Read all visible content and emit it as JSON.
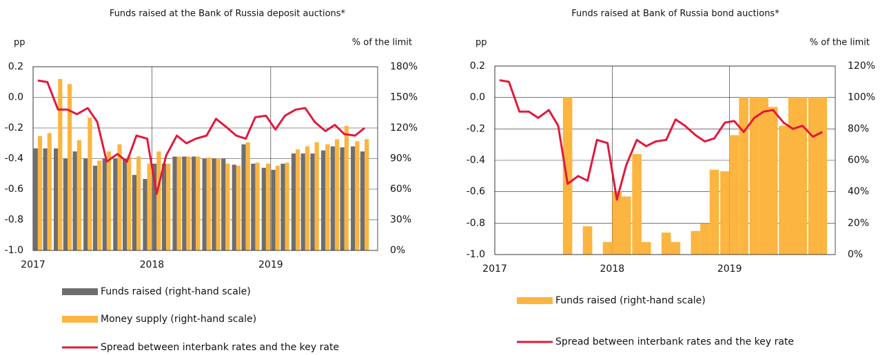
{
  "chart_data": [
    {
      "type": "combo",
      "title": "Funds raised at the Bank of Russia deposit auctions*",
      "y_label": "pp",
      "y2_label": "% of the limit",
      "x": [
        2017,
        2017.08,
        2017.17,
        2017.25,
        2017.33,
        2017.42,
        2017.5,
        2017.58,
        2017.67,
        2017.75,
        2017.83,
        2017.92,
        2018,
        2018.08,
        2018.17,
        2018.25,
        2018.33,
        2018.42,
        2018.5,
        2018.58,
        2018.67,
        2018.75,
        2018.83,
        2018.92,
        2019,
        2019.08,
        2019.17,
        2019.25,
        2019.33,
        2019.42,
        2019.5,
        2019.58,
        2019.67,
        2019.75
      ],
      "series": [
        {
          "name": "Funds raised (right-hand scale)",
          "kind": "bar",
          "axis": "y2",
          "color": "#6e6e6e",
          "values": [
            100,
            100,
            100,
            90,
            97,
            90,
            83,
            90,
            90,
            90,
            74,
            70,
            85,
            85,
            92,
            92,
            92,
            90,
            90,
            90,
            84,
            104,
            85,
            81,
            79,
            85,
            95,
            95,
            95,
            98,
            102,
            101,
            102,
            97
          ]
        },
        {
          "name": "Money supply (right-hand scale)",
          "kind": "bar",
          "axis": "y2",
          "color": "#fbb540",
          "values": [
            112,
            115,
            168,
            163,
            108,
            130,
            88,
            97,
            104,
            92,
            92,
            85,
            97,
            85,
            92,
            92,
            92,
            91,
            90,
            85,
            83,
            106,
            86,
            85,
            83,
            86,
            99,
            102,
            106,
            104,
            109,
            122,
            107,
            109
          ]
        },
        {
          "name": "Spread between interbank rates and the key rate",
          "kind": "line",
          "color": "#e2183b",
          "values": [
            0.11,
            0.1,
            -0.08,
            -0.08,
            -0.11,
            -0.07,
            -0.16,
            -0.42,
            -0.37,
            -0.42,
            -0.25,
            -0.27,
            -0.63,
            -0.38,
            -0.25,
            -0.3,
            -0.27,
            -0.25,
            -0.14,
            -0.19,
            -0.25,
            -0.27,
            -0.13,
            -0.12,
            -0.21,
            -0.12,
            -0.08,
            -0.07,
            -0.16,
            -0.22,
            -0.18,
            -0.24,
            -0.25,
            -0.2
          ]
        }
      ],
      "xlim": [
        2017,
        2019.9
      ],
      "xticks": [
        2017,
        2018,
        2019
      ],
      "ylim": [
        -1.0,
        0.2
      ],
      "yticks": [
        {
          "value": -1.0,
          "label": "-1.0"
        },
        -0.8,
        -0.6,
        -0.4,
        -0.2,
        {
          "value": 0,
          "label": "0.0"
        },
        0.2
      ],
      "y2lim": [
        0,
        180
      ],
      "y2ticks": [
        {
          "value": 0,
          "label": "0%"
        },
        {
          "value": 30,
          "label": "30%"
        },
        {
          "value": 60,
          "label": "60%"
        },
        {
          "value": 90,
          "label": "90%"
        },
        {
          "value": 120,
          "label": "120%"
        },
        {
          "value": 150,
          "label": "150%"
        },
        {
          "value": 180,
          "label": "180%"
        }
      ],
      "grid": true,
      "legend": "below"
    },
    {
      "type": "combo",
      "title": "Funds raised at Bank of Russia bond auctions*",
      "y_label": "pp",
      "y2_label": "% of the limit",
      "x": [
        2017,
        2017.08,
        2017.17,
        2017.25,
        2017.33,
        2017.42,
        2017.5,
        2017.58,
        2017.67,
        2017.75,
        2017.83,
        2017.92,
        2018,
        2018.08,
        2018.17,
        2018.25,
        2018.33,
        2018.42,
        2018.5,
        2018.58,
        2018.67,
        2018.75,
        2018.83,
        2018.92,
        2019,
        2019.08,
        2019.17,
        2019.25,
        2019.33,
        2019.42,
        2019.5,
        2019.58,
        2019.67,
        2019.75
      ],
      "series": [
        {
          "name": "Funds raised (right-hand scale)",
          "kind": "bar",
          "axis": "y2",
          "color": "#fbb540",
          "values": [
            0,
            0,
            0,
            0,
            0,
            0,
            0,
            100,
            0,
            18,
            0,
            8,
            40,
            37,
            64,
            8,
            0,
            14,
            8,
            0,
            15,
            20,
            54,
            53,
            76,
            100,
            100,
            100,
            94,
            82,
            100,
            100,
            100,
            100
          ]
        },
        {
          "name": "Spread between interbank rates and the key rate",
          "kind": "line",
          "color": "#e2183b",
          "values": [
            0.11,
            0.1,
            -0.09,
            -0.09,
            -0.13,
            -0.08,
            -0.18,
            -0.55,
            -0.5,
            -0.53,
            -0.27,
            -0.29,
            -0.65,
            -0.43,
            -0.27,
            -0.31,
            -0.28,
            -0.27,
            -0.14,
            -0.18,
            -0.24,
            -0.28,
            -0.26,
            -0.16,
            -0.15,
            -0.22,
            -0.13,
            -0.09,
            -0.08,
            -0.16,
            -0.2,
            -0.18,
            -0.25,
            -0.22
          ]
        }
      ],
      "xlim": [
        2017,
        2019.9
      ],
      "xticks": [
        2017,
        2018,
        2019
      ],
      "ylim": [
        -1.0,
        0.2
      ],
      "yticks": [
        {
          "value": -1.0,
          "label": "-1.0"
        },
        -0.8,
        -0.6,
        -0.4,
        -0.2,
        {
          "value": 0,
          "label": "0.0"
        },
        0.2
      ],
      "y2lim": [
        0,
        120
      ],
      "y2ticks": [
        {
          "value": 0,
          "label": "0%"
        },
        {
          "value": 20,
          "label": "20%"
        },
        {
          "value": 40,
          "label": "40%"
        },
        {
          "value": 60,
          "label": "60%"
        },
        {
          "value": 80,
          "label": "80%"
        },
        {
          "value": 100,
          "label": "100%"
        },
        {
          "value": 120,
          "label": "120%"
        }
      ],
      "grid": true,
      "legend": "below"
    }
  ]
}
